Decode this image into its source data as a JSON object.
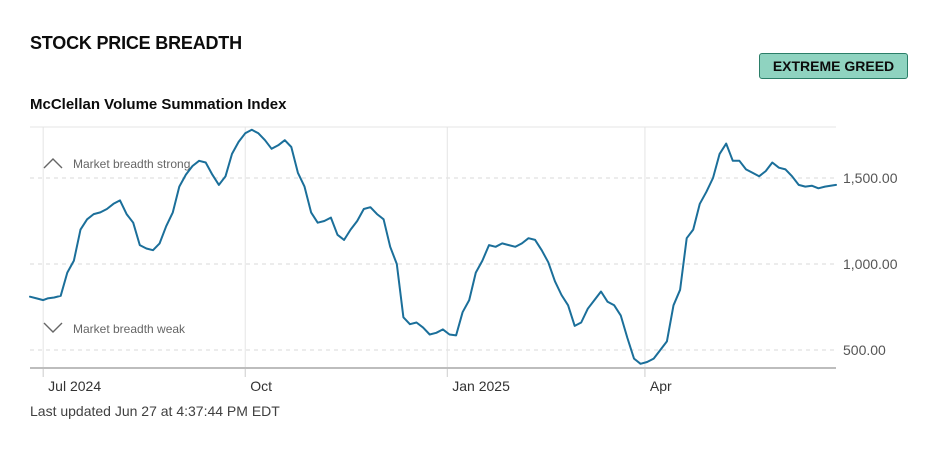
{
  "page": {
    "section_title": "STOCK PRICE BREADTH",
    "rating": "EXTREME GREED",
    "rating_color": "#8fd3c0",
    "last_updated": "Last updated Jun 27 at 4:37:44 PM EDT"
  },
  "chart_data": {
    "type": "line",
    "title": "McClellan Volume Summation Index",
    "xlabel": "",
    "ylabel": "",
    "x_ticks": [
      "Jul 2024",
      "Oct",
      "Jan 2025",
      "Apr"
    ],
    "x_tick_dates": [
      "2024-07-01",
      "2024-10-01",
      "2025-01-01",
      "2025-04-01"
    ],
    "y_ticks": [
      500,
      1000,
      1500
    ],
    "y_tick_labels": [
      "500.00",
      "1,000.00",
      "1,500.00"
    ],
    "ylim": [
      400,
      1800
    ],
    "xlim": [
      "2024-06-25",
      "2025-06-27"
    ],
    "grid": true,
    "line_color": "#1b6f9a",
    "annotations": [
      {
        "text": "Market breadth strong",
        "icon": "chevron-up-icon"
      },
      {
        "text": "Market breadth weak",
        "icon": "chevron-down-icon"
      }
    ],
    "series": [
      {
        "points": [
          [
            "2024-06-25",
            810
          ],
          [
            "2024-06-28",
            800
          ],
          [
            "2024-07-01",
            790
          ],
          [
            "2024-07-03",
            800
          ],
          [
            "2024-07-06",
            805
          ],
          [
            "2024-07-09",
            815
          ],
          [
            "2024-07-12",
            950
          ],
          [
            "2024-07-15",
            1020
          ],
          [
            "2024-07-18",
            1200
          ],
          [
            "2024-07-21",
            1260
          ],
          [
            "2024-07-24",
            1290
          ],
          [
            "2024-07-27",
            1300
          ],
          [
            "2024-07-30",
            1320
          ],
          [
            "2024-08-02",
            1350
          ],
          [
            "2024-08-05",
            1370
          ],
          [
            "2024-08-08",
            1290
          ],
          [
            "2024-08-11",
            1240
          ],
          [
            "2024-08-14",
            1110
          ],
          [
            "2024-08-17",
            1090
          ],
          [
            "2024-08-20",
            1080
          ],
          [
            "2024-08-23",
            1120
          ],
          [
            "2024-08-26",
            1220
          ],
          [
            "2024-08-29",
            1300
          ],
          [
            "2024-09-01",
            1450
          ],
          [
            "2024-09-04",
            1520
          ],
          [
            "2024-09-07",
            1570
          ],
          [
            "2024-09-10",
            1600
          ],
          [
            "2024-09-13",
            1590
          ],
          [
            "2024-09-16",
            1520
          ],
          [
            "2024-09-19",
            1460
          ],
          [
            "2024-09-22",
            1510
          ],
          [
            "2024-09-25",
            1640
          ],
          [
            "2024-09-28",
            1710
          ],
          [
            "2024-10-01",
            1760
          ],
          [
            "2024-10-04",
            1780
          ],
          [
            "2024-10-07",
            1760
          ],
          [
            "2024-10-10",
            1720
          ],
          [
            "2024-10-13",
            1670
          ],
          [
            "2024-10-16",
            1690
          ],
          [
            "2024-10-19",
            1720
          ],
          [
            "2024-10-22",
            1680
          ],
          [
            "2024-10-25",
            1530
          ],
          [
            "2024-10-28",
            1450
          ],
          [
            "2024-10-31",
            1300
          ],
          [
            "2024-11-03",
            1240
          ],
          [
            "2024-11-06",
            1250
          ],
          [
            "2024-11-09",
            1270
          ],
          [
            "2024-11-12",
            1170
          ],
          [
            "2024-11-15",
            1140
          ],
          [
            "2024-11-18",
            1200
          ],
          [
            "2024-11-21",
            1250
          ],
          [
            "2024-11-24",
            1320
          ],
          [
            "2024-11-27",
            1330
          ],
          [
            "2024-11-30",
            1290
          ],
          [
            "2024-12-03",
            1260
          ],
          [
            "2024-12-06",
            1100
          ],
          [
            "2024-12-09",
            1000
          ],
          [
            "2024-12-12",
            690
          ],
          [
            "2024-12-15",
            650
          ],
          [
            "2024-12-18",
            660
          ],
          [
            "2024-12-21",
            630
          ],
          [
            "2024-12-24",
            590
          ],
          [
            "2024-12-27",
            600
          ],
          [
            "2024-12-30",
            620
          ],
          [
            "2025-01-02",
            590
          ],
          [
            "2025-01-05",
            585
          ],
          [
            "2025-01-08",
            720
          ],
          [
            "2025-01-11",
            790
          ],
          [
            "2025-01-14",
            950
          ],
          [
            "2025-01-17",
            1020
          ],
          [
            "2025-01-20",
            1110
          ],
          [
            "2025-01-23",
            1100
          ],
          [
            "2025-01-26",
            1120
          ],
          [
            "2025-01-29",
            1110
          ],
          [
            "2025-02-01",
            1100
          ],
          [
            "2025-02-04",
            1120
          ],
          [
            "2025-02-07",
            1150
          ],
          [
            "2025-02-10",
            1140
          ],
          [
            "2025-02-13",
            1080
          ],
          [
            "2025-02-16",
            1010
          ],
          [
            "2025-02-19",
            900
          ],
          [
            "2025-02-22",
            820
          ],
          [
            "2025-02-25",
            760
          ],
          [
            "2025-02-28",
            640
          ],
          [
            "2025-03-03",
            660
          ],
          [
            "2025-03-06",
            740
          ],
          [
            "2025-03-09",
            790
          ],
          [
            "2025-03-12",
            840
          ],
          [
            "2025-03-15",
            780
          ],
          [
            "2025-03-18",
            760
          ],
          [
            "2025-03-21",
            700
          ],
          [
            "2025-03-24",
            570
          ],
          [
            "2025-03-27",
            450
          ],
          [
            "2025-03-30",
            420
          ],
          [
            "2025-04-02",
            430
          ],
          [
            "2025-04-05",
            450
          ],
          [
            "2025-04-08",
            500
          ],
          [
            "2025-04-11",
            550
          ],
          [
            "2025-04-14",
            760
          ],
          [
            "2025-04-17",
            850
          ],
          [
            "2025-04-20",
            1150
          ],
          [
            "2025-04-23",
            1200
          ],
          [
            "2025-04-26",
            1350
          ],
          [
            "2025-04-29",
            1420
          ],
          [
            "2025-05-02",
            1500
          ],
          [
            "2025-05-05",
            1640
          ],
          [
            "2025-05-08",
            1700
          ],
          [
            "2025-05-11",
            1600
          ],
          [
            "2025-05-14",
            1600
          ],
          [
            "2025-05-17",
            1550
          ],
          [
            "2025-05-20",
            1530
          ],
          [
            "2025-05-23",
            1510
          ],
          [
            "2025-05-26",
            1540
          ],
          [
            "2025-05-29",
            1590
          ],
          [
            "2025-06-01",
            1560
          ],
          [
            "2025-06-04",
            1550
          ],
          [
            "2025-06-07",
            1510
          ],
          [
            "2025-06-10",
            1460
          ],
          [
            "2025-06-13",
            1450
          ],
          [
            "2025-06-16",
            1455
          ],
          [
            "2025-06-19",
            1440
          ],
          [
            "2025-06-22",
            1450
          ],
          [
            "2025-06-27",
            1460
          ]
        ]
      }
    ]
  }
}
